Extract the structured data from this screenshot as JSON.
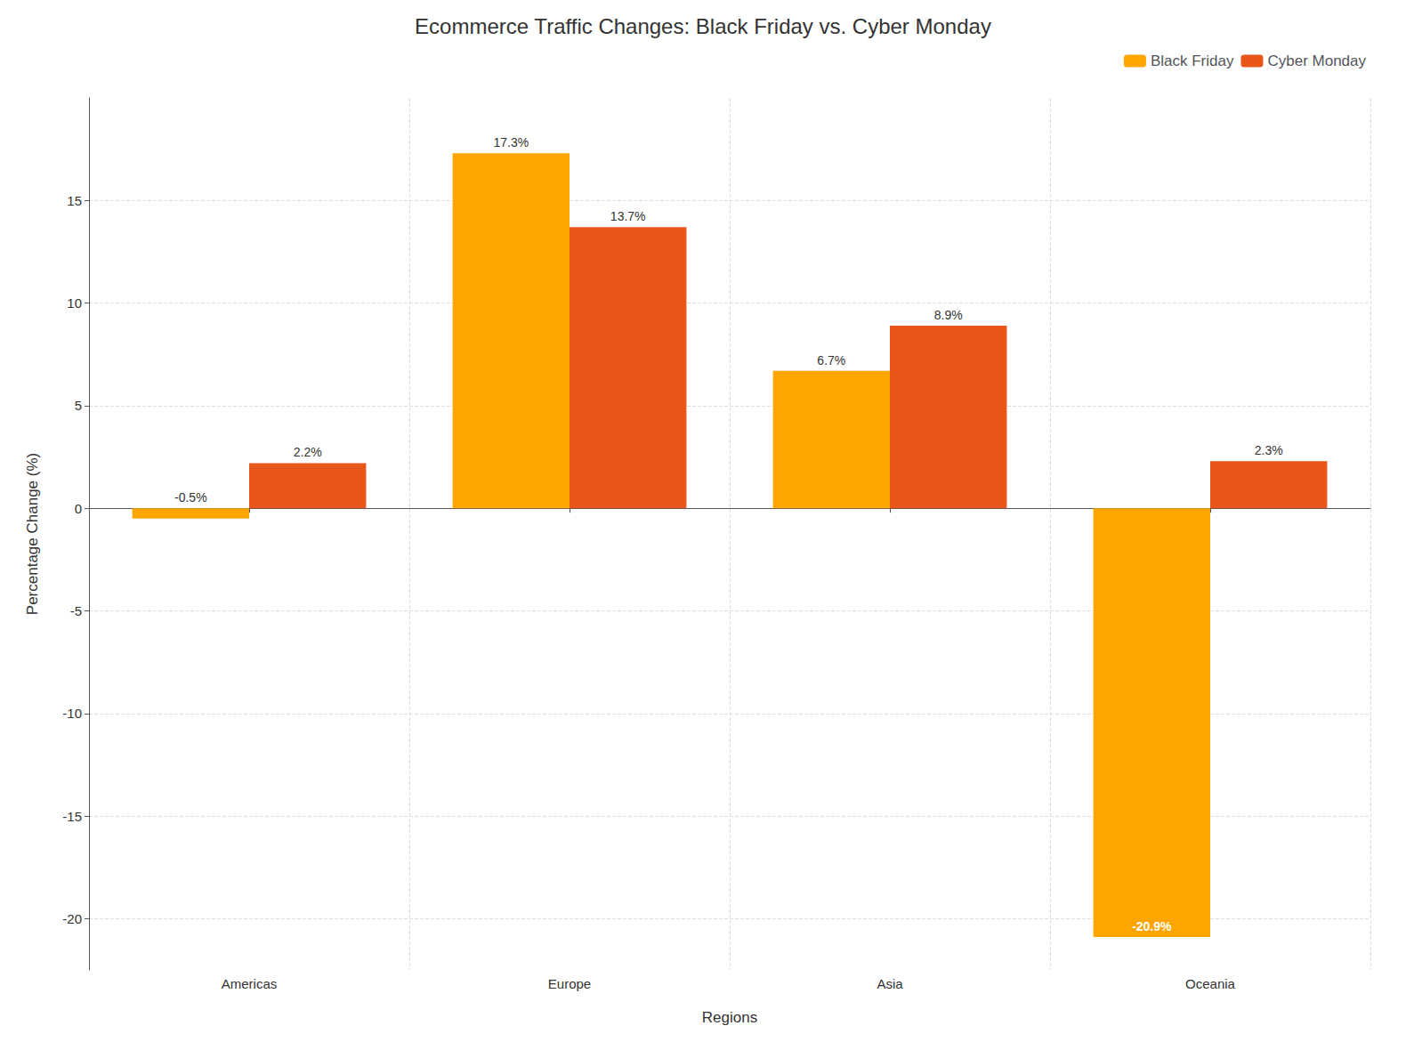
{
  "chart_data": {
    "type": "bar",
    "title": "Ecommerce Traffic Changes: Black Friday vs. Cyber Monday",
    "xlabel": "Regions",
    "ylabel": "Percentage Change (%)",
    "categories": [
      "Americas",
      "Europe",
      "Asia",
      "Oceania"
    ],
    "series": [
      {
        "name": "Black Friday",
        "color": "#FFA500",
        "values": [
          -0.5,
          17.3,
          6.7,
          -20.9
        ],
        "value_labels": [
          "-0.5%",
          "17.3%",
          "6.7%",
          "-20.9%"
        ]
      },
      {
        "name": "Cyber Monday",
        "color": "#E8561A",
        "values": [
          2.2,
          13.7,
          8.9,
          2.3
        ],
        "value_labels": [
          "2.2%",
          "13.7%",
          "8.9%",
          "2.3%"
        ]
      }
    ],
    "ylim": [
      -22.5,
      20
    ],
    "yticks": [
      -20,
      -15,
      -10,
      -5,
      0,
      5,
      10,
      15
    ],
    "grid": true,
    "legend": "upper right",
    "data_labels": true
  }
}
